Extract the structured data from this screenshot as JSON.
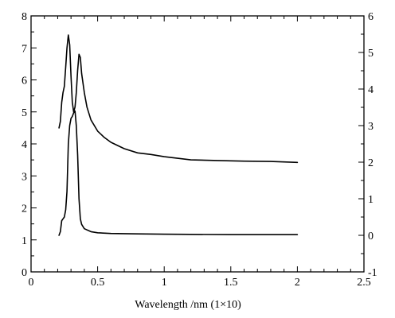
{
  "chart_data": {
    "type": "line",
    "title": "",
    "xlabel": "Wavelength /nm (1×10)",
    "ylabel_left": "",
    "ylabel_right": "",
    "xlim": [
      0,
      2.5
    ],
    "ylim_left": [
      0,
      8
    ],
    "ylim_right": [
      -1,
      6
    ],
    "x_ticks": [
      0,
      0.5,
      1,
      1.5,
      2,
      2.5
    ],
    "x_tick_labels": [
      "0",
      "0.5",
      "1",
      "1.5",
      "2",
      "2.5"
    ],
    "y_left_ticks": [
      0,
      1,
      2,
      3,
      4,
      5,
      6,
      7,
      8
    ],
    "y_left_tick_labels": [
      "0",
      "1",
      "2",
      "3",
      "4",
      "5",
      "6",
      "7",
      "8"
    ],
    "y_right_ticks": [
      -1,
      0,
      1,
      2,
      3,
      4,
      5,
      6
    ],
    "y_right_tick_labels": [
      "-1",
      "0",
      "1",
      "2",
      "3",
      "4",
      "5",
      "6"
    ],
    "grid": false,
    "legend": "none",
    "line_color": "#000000",
    "series": [
      {
        "axis": "left",
        "points": [
          [
            0.21,
            4.5
          ],
          [
            0.22,
            4.7
          ],
          [
            0.23,
            5.3
          ],
          [
            0.24,
            5.6
          ],
          [
            0.25,
            5.8
          ],
          [
            0.26,
            6.4
          ],
          [
            0.27,
            7.0
          ],
          [
            0.28,
            7.4
          ],
          [
            0.29,
            7.1
          ],
          [
            0.3,
            6.1
          ],
          [
            0.31,
            5.3
          ],
          [
            0.32,
            5.0
          ],
          [
            0.33,
            5.15
          ],
          [
            0.34,
            5.6
          ],
          [
            0.35,
            6.3
          ],
          [
            0.36,
            6.8
          ],
          [
            0.37,
            6.7
          ],
          [
            0.38,
            6.2
          ],
          [
            0.4,
            5.6
          ],
          [
            0.42,
            5.15
          ],
          [
            0.45,
            4.75
          ],
          [
            0.5,
            4.4
          ],
          [
            0.55,
            4.2
          ],
          [
            0.6,
            4.05
          ],
          [
            0.7,
            3.85
          ],
          [
            0.8,
            3.72
          ],
          [
            0.9,
            3.67
          ],
          [
            1.0,
            3.6
          ],
          [
            1.1,
            3.55
          ],
          [
            1.2,
            3.5
          ],
          [
            1.4,
            3.48
          ],
          [
            1.6,
            3.46
          ],
          [
            1.8,
            3.45
          ],
          [
            2.0,
            3.42
          ]
        ]
      },
      {
        "axis": "right",
        "points": [
          [
            0.21,
            0.0
          ],
          [
            0.22,
            0.1
          ],
          [
            0.23,
            0.4
          ],
          [
            0.24,
            0.45
          ],
          [
            0.25,
            0.5
          ],
          [
            0.26,
            0.7
          ],
          [
            0.27,
            1.2
          ],
          [
            0.28,
            2.5
          ],
          [
            0.29,
            3.0
          ],
          [
            0.3,
            3.2
          ],
          [
            0.31,
            3.25
          ],
          [
            0.32,
            3.35
          ],
          [
            0.33,
            3.4
          ],
          [
            0.34,
            3.0
          ],
          [
            0.35,
            2.2
          ],
          [
            0.36,
            1.0
          ],
          [
            0.37,
            0.45
          ],
          [
            0.38,
            0.3
          ],
          [
            0.4,
            0.18
          ],
          [
            0.45,
            0.1
          ],
          [
            0.5,
            0.07
          ],
          [
            0.6,
            0.05
          ],
          [
            0.8,
            0.04
          ],
          [
            1.0,
            0.03
          ],
          [
            1.5,
            0.02
          ],
          [
            2.0,
            0.02
          ]
        ]
      }
    ]
  }
}
